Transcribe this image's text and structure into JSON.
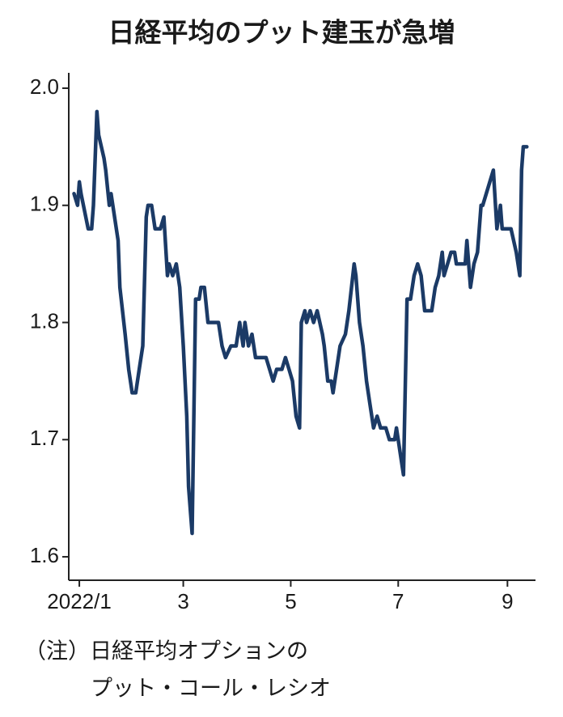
{
  "chart_data": {
    "type": "line",
    "title": "日経平均のプット建玉が急増",
    "notes": [
      "（注）日経平均オプションの",
      "プット・コール・レシオ"
    ],
    "x": [
      -3,
      -1,
      0,
      1,
      5,
      7,
      8,
      10,
      11,
      14,
      15,
      17,
      18,
      22,
      23,
      26,
      28,
      30,
      32,
      34,
      36,
      38,
      39,
      41,
      43,
      46,
      48,
      50,
      51,
      53,
      55,
      57,
      59,
      61,
      62,
      64,
      66,
      68,
      69,
      71,
      73,
      79,
      81,
      83,
      86,
      89,
      91,
      93,
      94,
      96,
      98,
      100,
      106,
      110,
      112,
      115,
      117,
      119,
      121,
      123,
      125,
      126,
      128,
      129,
      131,
      133,
      135,
      138,
      139,
      141,
      143,
      144,
      146,
      148,
      151,
      153,
      156,
      157,
      159,
      161,
      163,
      165,
      167,
      169,
      171,
      174,
      176,
      179,
      180,
      183,
      184,
      186,
      188,
      190,
      192,
      194,
      196,
      200,
      202,
      204,
      206,
      207,
      209,
      211,
      213,
      214,
      219,
      220,
      222,
      224,
      226,
      228,
      229,
      233,
      235,
      237,
      239,
      240,
      245,
      248,
      250,
      251,
      252,
      254
    ],
    "series": [
      {
        "name": "プット・コール・レシオ",
        "color": "#1b3a66",
        "values": [
          1.91,
          1.9,
          1.92,
          1.91,
          1.88,
          1.88,
          1.9,
          1.98,
          1.96,
          1.94,
          1.93,
          1.9,
          1.91,
          1.87,
          1.83,
          1.79,
          1.76,
          1.74,
          1.74,
          1.76,
          1.78,
          1.89,
          1.9,
          1.9,
          1.88,
          1.88,
          1.89,
          1.84,
          1.85,
          1.84,
          1.85,
          1.83,
          1.78,
          1.72,
          1.66,
          1.62,
          1.82,
          1.82,
          1.83,
          1.83,
          1.8,
          1.8,
          1.78,
          1.77,
          1.78,
          1.78,
          1.8,
          1.78,
          1.8,
          1.78,
          1.79,
          1.77,
          1.77,
          1.75,
          1.76,
          1.76,
          1.77,
          1.76,
          1.75,
          1.72,
          1.71,
          1.8,
          1.81,
          1.8,
          1.81,
          1.8,
          1.81,
          1.79,
          1.78,
          1.75,
          1.75,
          1.74,
          1.76,
          1.78,
          1.79,
          1.81,
          1.85,
          1.84,
          1.8,
          1.78,
          1.75,
          1.73,
          1.71,
          1.72,
          1.71,
          1.71,
          1.7,
          1.7,
          1.71,
          1.68,
          1.67,
          1.82,
          1.82,
          1.84,
          1.85,
          1.84,
          1.81,
          1.81,
          1.83,
          1.84,
          1.86,
          1.84,
          1.85,
          1.86,
          1.86,
          1.85,
          1.85,
          1.87,
          1.83,
          1.85,
          1.86,
          1.9,
          1.9,
          1.92,
          1.93,
          1.88,
          1.9,
          1.88,
          1.88,
          1.86,
          1.84,
          1.93,
          1.95,
          1.95
        ]
      }
    ],
    "xlim": [
      -6,
      258
    ],
    "xticks": [
      {
        "value": 0,
        "label": "2022/1"
      },
      {
        "value": 59,
        "label": "3"
      },
      {
        "value": 120,
        "label": "5"
      },
      {
        "value": 181,
        "label": "7"
      },
      {
        "value": 243,
        "label": "9"
      }
    ],
    "ylim": [
      1.58,
      2.01
    ],
    "yticks": [
      1.6,
      1.7,
      1.8,
      1.9,
      {
        "value": 2,
        "label": "2.0"
      }
    ]
  }
}
